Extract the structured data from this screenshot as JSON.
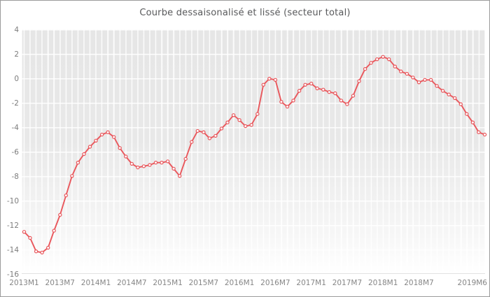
{
  "chart_data": {
    "type": "line",
    "title": "Courbe dessaisonalisé et lissé (secteur total)",
    "xlabel": "",
    "ylabel": "",
    "ylim": [
      -16,
      4
    ],
    "grid": true,
    "legend": "none",
    "marker_style": "circle-white-fill",
    "line_color": "#e9575c",
    "plot_bg_color": "#e8e8e8",
    "y_ticks": [
      "4",
      "2",
      "0",
      "-2",
      "-4",
      "-6",
      "-8",
      "-10",
      "-12",
      "-14",
      "-16"
    ],
    "x_ticks": [
      "2013M1",
      "2013M7",
      "2014M1",
      "2014M7",
      "2015M1",
      "2015M7",
      "2016M1",
      "2016M7",
      "2017M1",
      "2017M7",
      "2018M1",
      "2018M7",
      "2019M6"
    ],
    "categories": [
      "2013M1",
      "2013M2",
      "2013M3",
      "2013M4",
      "2013M5",
      "2013M6",
      "2013M7",
      "2013M8",
      "2013M9",
      "2013M10",
      "2013M11",
      "2013M12",
      "2014M1",
      "2014M2",
      "2014M3",
      "2014M4",
      "2014M5",
      "2014M6",
      "2014M7",
      "2014M8",
      "2014M9",
      "2014M10",
      "2014M11",
      "2014M12",
      "2015M1",
      "2015M2",
      "2015M3",
      "2015M4",
      "2015M5",
      "2015M6",
      "2015M7",
      "2015M8",
      "2015M9",
      "2015M10",
      "2015M11",
      "2015M12",
      "2016M1",
      "2016M2",
      "2016M3",
      "2016M4",
      "2016M5",
      "2016M6",
      "2016M7",
      "2016M8",
      "2016M9",
      "2016M10",
      "2016M11",
      "2016M12",
      "2017M1",
      "2017M2",
      "2017M3",
      "2017M4",
      "2017M5",
      "2017M6",
      "2017M7",
      "2017M8",
      "2017M9",
      "2017M10",
      "2017M11",
      "2017M12",
      "2018M1",
      "2018M2",
      "2018M3",
      "2018M4",
      "2018M5",
      "2018M6",
      "2018M7",
      "2018M8",
      "2018M9",
      "2018M10",
      "2018M11",
      "2018M12",
      "2019M1",
      "2019M2",
      "2019M3",
      "2019M4",
      "2019M5",
      "2019M6"
    ],
    "values": [
      -12.6,
      -13.1,
      -14.2,
      -14.3,
      -13.9,
      -12.5,
      -11.2,
      -9.6,
      -8.0,
      -6.9,
      -6.2,
      -5.6,
      -5.1,
      -4.6,
      -4.4,
      -4.8,
      -5.7,
      -6.4,
      -7.0,
      -7.3,
      -7.2,
      -7.1,
      -6.9,
      -6.9,
      -6.8,
      -7.4,
      -8.0,
      -6.6,
      -5.2,
      -4.3,
      -4.4,
      -4.9,
      -4.7,
      -4.1,
      -3.6,
      -3.0,
      -3.4,
      -3.9,
      -3.8,
      -2.9,
      -0.5,
      0.0,
      -0.1,
      -1.9,
      -2.3,
      -1.8,
      -1.0,
      -0.5,
      -0.4,
      -0.8,
      -0.9,
      -1.1,
      -1.2,
      -1.8,
      -2.1,
      -1.4,
      -0.2,
      0.8,
      1.3,
      1.6,
      1.8,
      1.6,
      1.0,
      0.6,
      0.4,
      0.1,
      -0.3,
      -0.1,
      -0.1,
      -0.6,
      -1.0,
      -1.3,
      -1.6,
      -2.1,
      -2.9,
      -3.6,
      -4.4,
      -4.6
    ]
  }
}
